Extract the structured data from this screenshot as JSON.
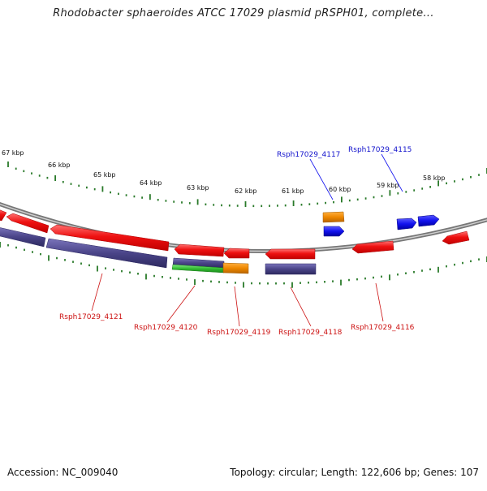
{
  "title": "Rhodobacter sphaeroides ATCC 17029 plasmid pRSPH01, complete...",
  "footer": {
    "accession": "Accession: NC_009040",
    "summary": "Topology: circular; Length: 122,606 bp; Genes: 107"
  },
  "scale_labels": [
    "67 kbp",
    "66 kbp",
    "65 kbp",
    "64 kbp",
    "63 kbp",
    "62 kbp",
    "61 kbp",
    "60 kbp",
    "59 kbp",
    "58 kbp"
  ],
  "colors": {
    "forward_gene": "#ee1111",
    "reverse_gene": "#ee1111",
    "selected_gene": "#1111ee",
    "cds_bar": "#4a4488",
    "rna": "#33bb33",
    "orange_gene": "#ee8800",
    "ticks": "#2a7a2a",
    "backbone": "#888888"
  },
  "labels": {
    "top": [
      "Rsph17029_4117",
      "Rsph17029_4115"
    ],
    "bottom": [
      "Rsph17029_4121",
      "Rsph17029_4120",
      "Rsph17029_4119",
      "Rsph17029_4118",
      "Rsph17029_4116"
    ]
  }
}
